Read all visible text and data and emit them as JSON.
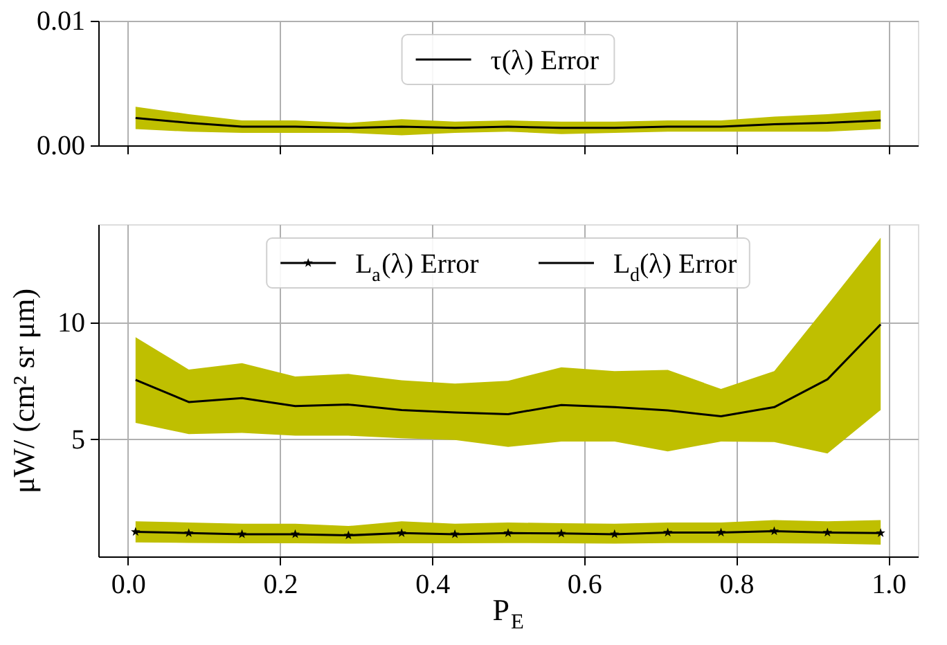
{
  "chart_data": [
    {
      "type": "line",
      "x": [
        0.01,
        0.08,
        0.15,
        0.22,
        0.29,
        0.36,
        0.43,
        0.5,
        0.57,
        0.64,
        0.71,
        0.78,
        0.85,
        0.92,
        0.99
      ],
      "series": [
        {
          "name": "τ(λ) Error",
          "color": "#000000",
          "marker": "none",
          "values": [
            0.0022,
            0.0018,
            0.0015,
            0.0015,
            0.0014,
            0.0015,
            0.0014,
            0.0015,
            0.0014,
            0.0014,
            0.0015,
            0.0015,
            0.0017,
            0.0018,
            0.002
          ],
          "lower": [
            0.0013,
            0.0011,
            0.001,
            0.001,
            0.001,
            0.0008,
            0.001,
            0.0011,
            0.0009,
            0.001,
            0.0011,
            0.0011,
            0.0011,
            0.0011,
            0.0013
          ],
          "upper": [
            0.0031,
            0.0025,
            0.002,
            0.002,
            0.0018,
            0.0021,
            0.0019,
            0.002,
            0.0019,
            0.0019,
            0.002,
            0.002,
            0.0023,
            0.0025,
            0.0028
          ]
        }
      ],
      "xlim": [
        -0.039,
        1.039
      ],
      "xticks": [
        {
          "value": 0,
          "label": null
        },
        {
          "value": 0.2,
          "label": null
        },
        {
          "value": 0.4,
          "label": null
        },
        {
          "value": 0.6,
          "label": null
        },
        {
          "value": 0.8,
          "label": null
        },
        {
          "value": 1,
          "label": null
        }
      ],
      "ylim": [
        0,
        0.01
      ],
      "yticks": [
        {
          "value": 0,
          "label": "0.00"
        },
        0.01
      ],
      "tick_labels": "y",
      "grid": true,
      "legend": "top"
    },
    {
      "type": "line",
      "x": [
        0.01,
        0.08,
        0.15,
        0.22,
        0.29,
        0.36,
        0.43,
        0.5,
        0.57,
        0.64,
        0.71,
        0.78,
        0.85,
        0.92,
        0.99
      ],
      "xlabel": "P$_{E}$",
      "ylabel": "μW/ (cm² sr μm)",
      "series": [
        {
          "name": "L$_{a}$(λ) Error",
          "color": "#000000",
          "marker": "star",
          "values": [
            1.05,
            1.0,
            0.95,
            0.95,
            0.9,
            1.0,
            0.95,
            1.0,
            0.98,
            0.95,
            1.02,
            1.02,
            1.08,
            1.02,
            1.0
          ],
          "lower": [
            0.6,
            0.58,
            0.56,
            0.56,
            0.55,
            0.56,
            0.56,
            0.57,
            0.56,
            0.55,
            0.57,
            0.57,
            0.56,
            0.55,
            0.5
          ],
          "upper": [
            1.5,
            1.45,
            1.4,
            1.4,
            1.3,
            1.5,
            1.4,
            1.45,
            1.42,
            1.4,
            1.45,
            1.45,
            1.55,
            1.5,
            1.55
          ]
        },
        {
          "name": "L$_{d}$(λ) Error",
          "color": "#000000",
          "marker": "none",
          "values": [
            7.55,
            6.6,
            6.77,
            6.43,
            6.49,
            6.26,
            6.15,
            6.08,
            6.47,
            6.38,
            6.24,
            5.99,
            6.38,
            7.57,
            9.92
          ],
          "lower": [
            5.71,
            5.23,
            5.28,
            5.16,
            5.16,
            5.05,
            4.98,
            4.68,
            4.91,
            4.91,
            4.49,
            4.91,
            4.89,
            4.4,
            6.26
          ],
          "upper": [
            9.37,
            7.99,
            8.26,
            7.69,
            7.8,
            7.53,
            7.39,
            7.51,
            8.08,
            7.92,
            7.97,
            7.16,
            7.92,
            10.75,
            13.62
          ]
        }
      ],
      "xlim": [
        -0.039,
        1.039
      ],
      "xticks": [
        {
          "value": 0,
          "label": "0.0"
        },
        {
          "value": 0.2,
          "label": "0.2"
        },
        {
          "value": 0.4,
          "label": "0.4"
        },
        {
          "value": 0.6,
          "label": "0.6"
        },
        {
          "value": 0.8,
          "label": "0.8"
        },
        {
          "value": 1,
          "label": "1.0"
        }
      ],
      "ylim": [
        0,
        14.2
      ],
      "yticks": [
        5,
        10
      ],
      "grid": true,
      "legend": "top"
    }
  ]
}
